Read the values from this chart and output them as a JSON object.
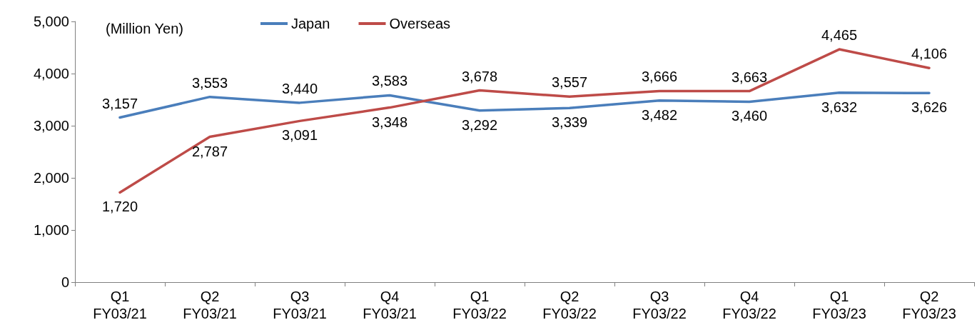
{
  "chart_data": {
    "type": "line",
    "categories": [
      "Q1\nFY03/21",
      "Q2\nFY03/21",
      "Q3\nFY03/21",
      "Q4\nFY03/21",
      "Q1\nFY03/22",
      "Q2\nFY03/22",
      "Q3\nFY03/22",
      "Q4\nFY03/22",
      "Q1\nFY03/23",
      "Q2\nFY03/23"
    ],
    "series": [
      {
        "name": "Japan",
        "color": "#4a7ebb",
        "values": [
          3157,
          3553,
          3440,
          3583,
          3292,
          3339,
          3482,
          3460,
          3632,
          3626
        ],
        "value_labels": [
          "3,157",
          "3,553",
          "3,440",
          "3,583",
          "3,292",
          "3,339",
          "3,482",
          "3,460",
          "3,632",
          "3,626"
        ]
      },
      {
        "name": "Overseas",
        "color": "#be4b48",
        "values": [
          1720,
          2787,
          3091,
          3348,
          3678,
          3557,
          3666,
          3663,
          4465,
          4106
        ],
        "value_labels": [
          "1,720",
          "2,787",
          "3,091",
          "3,348",
          "3,678",
          "3,557",
          "3,666",
          "3,663",
          "4,465",
          "4,106"
        ]
      }
    ],
    "ylim": [
      0,
      5000
    ],
    "yticks": [
      0,
      {
        "value": 1000,
        "label": "1,000"
      },
      {
        "value": 2000,
        "label": "2,000"
      },
      {
        "value": 3000,
        "label": "3,000"
      },
      {
        "value": 4000,
        "label": "4,000"
      },
      {
        "value": 5000,
        "label": "5,000"
      }
    ],
    "grid": false,
    "legend": "top",
    "marker": "none",
    "line_style": "solid",
    "annotations": [
      "(Million Yen)"
    ]
  }
}
